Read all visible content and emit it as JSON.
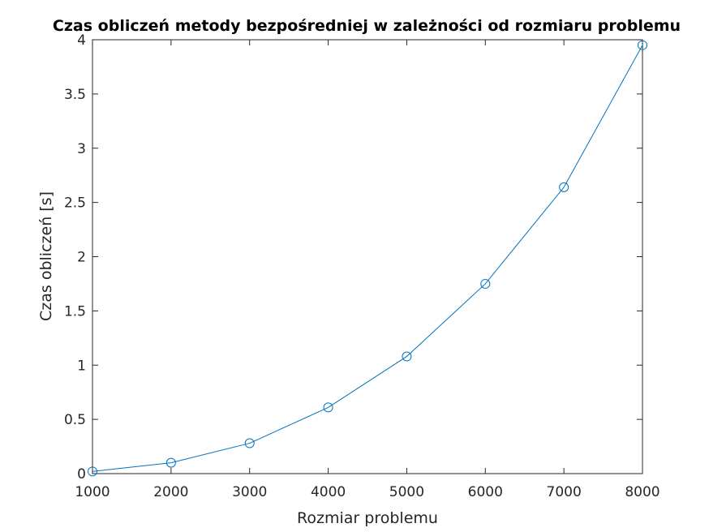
{
  "chart_data": {
    "type": "line",
    "title": "Czas obliczeń metody bezpośredniej w zależności od rozmiaru problemu",
    "xlabel": "Rozmiar problemu",
    "ylabel": "Czas obliczeń [s]",
    "xlim": [
      1000,
      8000
    ],
    "ylim": [
      0,
      4
    ],
    "xticks": [
      1000,
      2000,
      3000,
      4000,
      5000,
      6000,
      7000,
      8000
    ],
    "yticks": [
      0,
      0.5,
      1,
      1.5,
      2,
      2.5,
      3,
      3.5,
      4
    ],
    "x": [
      1000,
      2000,
      3000,
      4000,
      5000,
      6000,
      7000,
      8000
    ],
    "y": [
      0.02,
      0.1,
      0.28,
      0.61,
      1.08,
      1.75,
      2.64,
      3.95
    ],
    "marker": "circle",
    "grid": false,
    "line_color": "#0072bd"
  }
}
